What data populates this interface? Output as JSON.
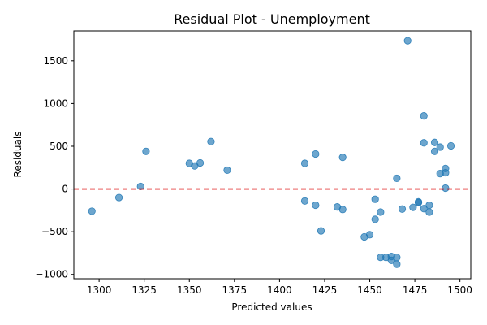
{
  "chart_data": {
    "type": "scatter",
    "title": "Residual Plot - Unemployment",
    "xlabel": "Predicted values",
    "ylabel": "Residuals",
    "xlim": [
      1286,
      1506
    ],
    "ylim": [
      -1050,
      1850
    ],
    "x_ticks": [
      1300,
      1325,
      1350,
      1375,
      1400,
      1425,
      1450,
      1475,
      1500
    ],
    "x_tick_labels": [
      "1300",
      "1325",
      "1350",
      "1375",
      "1400",
      "1425",
      "1450",
      "1475",
      "1500"
    ],
    "y_ticks": [
      -1000,
      -500,
      0,
      500,
      1000,
      1500
    ],
    "y_tick_labels": [
      "−1000",
      "−500",
      "0",
      "500",
      "1000",
      "1500"
    ],
    "reference_line": {
      "y": 0,
      "style": "dashed",
      "color": "#dd0000"
    },
    "point_color": "#1f77b4",
    "grid": false,
    "legend": "none",
    "points": [
      {
        "x": 1296,
        "y": -260
      },
      {
        "x": 1311,
        "y": -100
      },
      {
        "x": 1323,
        "y": 30
      },
      {
        "x": 1326,
        "y": 440
      },
      {
        "x": 1350,
        "y": 300
      },
      {
        "x": 1353,
        "y": 270
      },
      {
        "x": 1356,
        "y": 305
      },
      {
        "x": 1362,
        "y": 555
      },
      {
        "x": 1371,
        "y": 220
      },
      {
        "x": 1414,
        "y": 300
      },
      {
        "x": 1414,
        "y": -140
      },
      {
        "x": 1420,
        "y": 410
      },
      {
        "x": 1420,
        "y": -190
      },
      {
        "x": 1423,
        "y": -490
      },
      {
        "x": 1432,
        "y": -210
      },
      {
        "x": 1435,
        "y": 370
      },
      {
        "x": 1435,
        "y": -240
      },
      {
        "x": 1447,
        "y": -560
      },
      {
        "x": 1450,
        "y": -535
      },
      {
        "x": 1453,
        "y": -120
      },
      {
        "x": 1453,
        "y": -355
      },
      {
        "x": 1456,
        "y": -270
      },
      {
        "x": 1456,
        "y": -800
      },
      {
        "x": 1459,
        "y": -800
      },
      {
        "x": 1462,
        "y": -790
      },
      {
        "x": 1462,
        "y": -835
      },
      {
        "x": 1465,
        "y": -800
      },
      {
        "x": 1465,
        "y": -880
      },
      {
        "x": 1465,
        "y": 125
      },
      {
        "x": 1468,
        "y": -235
      },
      {
        "x": 1471,
        "y": 1735
      },
      {
        "x": 1474,
        "y": -215
      },
      {
        "x": 1477,
        "y": -150
      },
      {
        "x": 1477,
        "y": -160
      },
      {
        "x": 1480,
        "y": 855
      },
      {
        "x": 1480,
        "y": 540
      },
      {
        "x": 1480,
        "y": -230
      },
      {
        "x": 1483,
        "y": -190
      },
      {
        "x": 1483,
        "y": -270
      },
      {
        "x": 1486,
        "y": 545
      },
      {
        "x": 1486,
        "y": 440
      },
      {
        "x": 1489,
        "y": 490
      },
      {
        "x": 1489,
        "y": 180
      },
      {
        "x": 1492,
        "y": 240
      },
      {
        "x": 1492,
        "y": 190
      },
      {
        "x": 1492,
        "y": 10
      },
      {
        "x": 1495,
        "y": 505
      }
    ]
  }
}
